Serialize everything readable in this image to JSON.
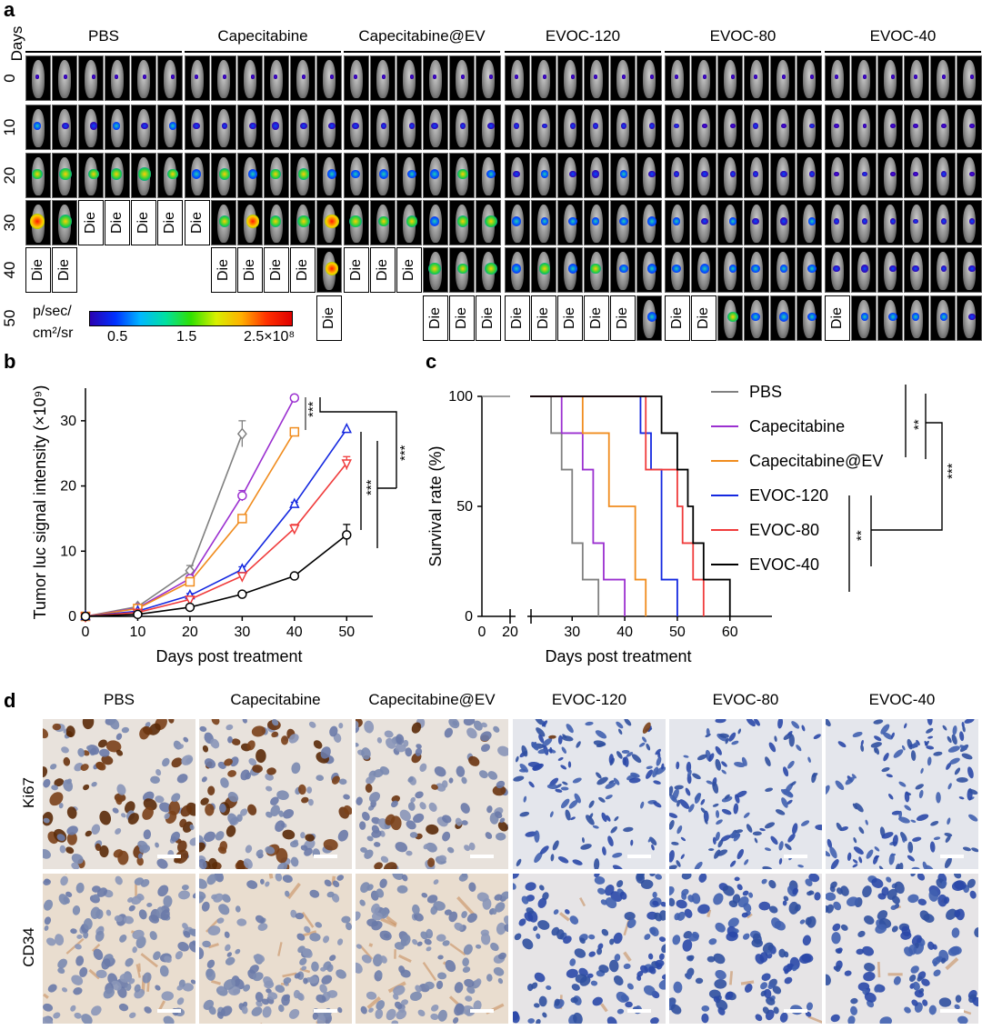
{
  "panel_a": {
    "letter": "a",
    "days_label": "Days",
    "groups": [
      "PBS",
      "Capecitabine",
      "Capecitabine@EV",
      "EVOC-120",
      "EVOC-80",
      "EVOC-40"
    ],
    "days": [
      "0",
      "10",
      "20",
      "30",
      "40",
      "50"
    ],
    "die_label": "Die",
    "colorbar": {
      "unit_line1": "p/sec/",
      "unit_line2": "cm²/sr",
      "ticks": [
        "0.5",
        "1.5",
        "2.5×10⁸"
      ]
    }
  },
  "panel_b": {
    "letter": "b",
    "chart_data": {
      "type": "line",
      "xlabel": "Days post treatment",
      "ylabel": "Tumor luc signal intensity (×10⁹)",
      "x_ticks": [
        "0",
        "10",
        "20",
        "30",
        "40",
        "50"
      ],
      "y_ticks": [
        "0",
        "10",
        "20",
        "30"
      ],
      "xlim": [
        0,
        55
      ],
      "ylim": [
        0,
        35
      ],
      "series": [
        {
          "color": "#808080",
          "marker": "diamond",
          "x": [
            0,
            10,
            20,
            30
          ],
          "y": [
            0,
            1.5,
            7,
            28
          ],
          "err": [
            0,
            0.3,
            0.8,
            2.0
          ]
        },
        {
          "color": "#9B30D0",
          "marker": "circle",
          "x": [
            0,
            10,
            20,
            30,
            40
          ],
          "y": [
            0,
            1.3,
            5.8,
            18.5,
            33.5
          ],
          "err": [
            0,
            0.2,
            0.5,
            0.8,
            0
          ]
        },
        {
          "color": "#F08C1E",
          "marker": "square",
          "x": [
            0,
            10,
            20,
            30,
            40
          ],
          "y": [
            0,
            1.2,
            5.3,
            15,
            28.3
          ],
          "err": [
            0,
            0.2,
            0.4,
            0.5,
            0
          ]
        },
        {
          "color": "#1428E0",
          "marker": "triangle-up",
          "x": [
            0,
            10,
            20,
            30,
            40,
            50
          ],
          "y": [
            0,
            0.8,
            3.2,
            7.2,
            17.2,
            28.7
          ],
          "err": [
            0,
            0.1,
            0.3,
            0.4,
            0.3,
            0
          ]
        },
        {
          "color": "#F03C3C",
          "marker": "triangle-down",
          "x": [
            0,
            10,
            20,
            30,
            40,
            50
          ],
          "y": [
            0,
            0.6,
            2.6,
            6.2,
            13.5,
            23.5
          ],
          "err": [
            0,
            0.1,
            0.2,
            0.3,
            0.6,
            1.0
          ]
        },
        {
          "color": "#000000",
          "marker": "circle",
          "x": [
            0,
            10,
            20,
            30,
            40,
            50
          ],
          "y": [
            0,
            0.3,
            1.4,
            3.4,
            6.2,
            12.5
          ],
          "err": [
            0,
            0.1,
            0.2,
            0.2,
            0.3,
            1.6
          ]
        }
      ],
      "annotations": [
        "***",
        "***",
        "***"
      ]
    }
  },
  "panel_c": {
    "letter": "c",
    "chart_data": {
      "type": "line",
      "xlabel": "Days post treatment",
      "ylabel": "Survival rate (%)",
      "x_ticks": [
        "0",
        "20",
        "30",
        "40",
        "50",
        "60"
      ],
      "y_ticks": [
        "0",
        "50",
        "100"
      ],
      "series": [
        {
          "name": "PBS",
          "color": "#808080",
          "steps": [
            [
              0,
              100
            ],
            [
              26,
              100
            ],
            [
              26,
              83.3
            ],
            [
              28,
              83.3
            ],
            [
              28,
              66.7
            ],
            [
              30,
              66.7
            ],
            [
              30,
              33.3
            ],
            [
              32,
              33.3
            ],
            [
              32,
              16.7
            ],
            [
              35,
              16.7
            ],
            [
              35,
              0
            ]
          ]
        },
        {
          "name": "Capecitabine",
          "color": "#9B30D0",
          "steps": [
            [
              0,
              100
            ],
            [
              28,
              100
            ],
            [
              28,
              83.3
            ],
            [
              32,
              83.3
            ],
            [
              32,
              66.7
            ],
            [
              34,
              66.7
            ],
            [
              34,
              33.3
            ],
            [
              36,
              33.3
            ],
            [
              36,
              16.7
            ],
            [
              40,
              16.7
            ],
            [
              40,
              0
            ]
          ]
        },
        {
          "name": "Capecitabine@EV",
          "color": "#F08C1E",
          "steps": [
            [
              0,
              100
            ],
            [
              32,
              100
            ],
            [
              32,
              83.3
            ],
            [
              37,
              83.3
            ],
            [
              37,
              50
            ],
            [
              42,
              50
            ],
            [
              42,
              16.7
            ],
            [
              44,
              16.7
            ],
            [
              44,
              0
            ]
          ]
        },
        {
          "name": "EVOC-120",
          "color": "#1428E0",
          "steps": [
            [
              0,
              100
            ],
            [
              43,
              100
            ],
            [
              43,
              83.3
            ],
            [
              45,
              83.3
            ],
            [
              45,
              66.7
            ],
            [
              47,
              66.7
            ],
            [
              47,
              16.7
            ],
            [
              50,
              16.7
            ],
            [
              50,
              0
            ]
          ]
        },
        {
          "name": "EVOC-80",
          "color": "#F03C3C",
          "steps": [
            [
              0,
              100
            ],
            [
              44,
              100
            ],
            [
              44,
              66.7
            ],
            [
              50,
              66.7
            ],
            [
              50,
              50
            ],
            [
              51,
              50
            ],
            [
              51,
              33.3
            ],
            [
              53,
              33.3
            ],
            [
              53,
              16.7
            ],
            [
              55,
              16.7
            ],
            [
              55,
              0
            ]
          ]
        },
        {
          "name": "EVOC-40",
          "color": "#000000",
          "steps": [
            [
              0,
              100
            ],
            [
              47,
              100
            ],
            [
              47,
              83.3
            ],
            [
              50,
              83.3
            ],
            [
              50,
              66.7
            ],
            [
              52,
              66.7
            ],
            [
              52,
              50
            ],
            [
              53,
              50
            ],
            [
              53,
              33.3
            ],
            [
              55,
              33.3
            ],
            [
              55,
              16.7
            ],
            [
              60,
              16.7
            ],
            [
              60,
              0
            ]
          ]
        }
      ],
      "annotations": [
        "**",
        "**",
        "***"
      ]
    }
  },
  "panel_d": {
    "letter": "d",
    "groups": [
      "PBS",
      "Capecitabine",
      "Capecitabine@EV",
      "EVOC-120",
      "EVOC-80",
      "EVOC-40"
    ],
    "rows": [
      "Ki67",
      "CD34"
    ],
    "ki67_brown_fraction": [
      0.45,
      0.28,
      0.2,
      0.02,
      0.01,
      0.0
    ]
  }
}
